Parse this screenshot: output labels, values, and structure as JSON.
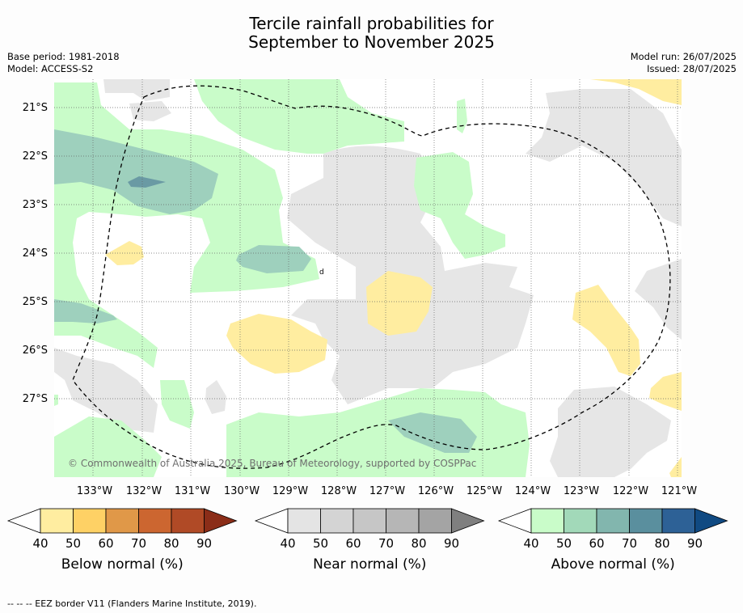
{
  "title_line1": "Tercile rainfall probabilities for",
  "title_line2": "September to November 2025",
  "base_period": "Base period: 1981-2018",
  "model": "Model: ACCESS-S2",
  "model_run": "Model run: 26/07/2025",
  "issued": "Issued: 28/07/2025",
  "copyright": "© Commonwealth of Australia 2025, Bureau of Meteorology, supported by COSPPac",
  "footer": "--  --  -- EEZ border V11 (Flanders Marine Institute, 2019).",
  "lat_labels": [
    "21°S",
    "22°S",
    "23°S",
    "24°S",
    "25°S",
    "26°S",
    "27°S"
  ],
  "lon_labels": [
    "133°W",
    "132°W",
    "131°W",
    "130°W",
    "129°W",
    "128°W",
    "127°W",
    "126°W",
    "125°W",
    "124°W",
    "123°W",
    "122°W",
    "121°W"
  ],
  "colorbars": [
    {
      "label": "Below normal (%)",
      "ticks": [
        "40",
        "50",
        "60",
        "70",
        "80",
        "90"
      ],
      "colors": [
        "#ffffff",
        "#ffeda0",
        "#fed165",
        "#e09848",
        "#cc6630",
        "#b04a26",
        "#8b2d18"
      ]
    },
    {
      "label": "Near normal (%)",
      "ticks": [
        "40",
        "50",
        "60",
        "70",
        "80",
        "90"
      ],
      "colors": [
        "#ffffff",
        "#e4e4e4",
        "#d4d4d4",
        "#c6c6c6",
        "#b6b6b6",
        "#a4a4a4",
        "#7f7f7f"
      ]
    },
    {
      "label": "Above normal (%)",
      "ticks": [
        "40",
        "50",
        "60",
        "70",
        "80",
        "90"
      ],
      "colors": [
        "#ffffff",
        "#c9fcc9",
        "#a2d9b9",
        "#82b6ae",
        "#5a8f9e",
        "#2d6196",
        "#104a82"
      ]
    }
  ],
  "colors": {
    "below40": "#ffeda0",
    "near40": "#e6e6e6",
    "above40": "#c9fcc9",
    "above50": "#9ed0bd",
    "above60": "#6a9aa4",
    "eez_line": "#000000",
    "grid": "#666666"
  }
}
